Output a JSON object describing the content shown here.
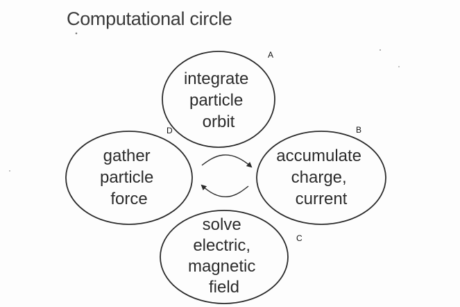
{
  "title": "Computational circle",
  "nodes": {
    "top": {
      "lines": [
        "integrate",
        "particle",
        "orbit"
      ],
      "label": "A"
    },
    "right": {
      "lines": [
        "accumulate",
        "charge,",
        "current"
      ],
      "label": "B"
    },
    "bottom": {
      "lines": [
        "solve",
        "electric,",
        "magnetic",
        "field"
      ],
      "label": "C"
    },
    "left": {
      "lines": [
        "gather",
        "particle",
        "force"
      ],
      "label": "D"
    }
  },
  "colors": {
    "ink": "#2a2a2a",
    "background": "#fdfdfd"
  }
}
